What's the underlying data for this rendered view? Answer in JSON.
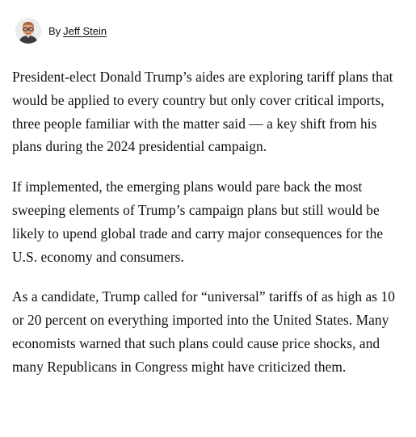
{
  "byline": {
    "prefix": "By",
    "author": "Jeff Stein"
  },
  "article": {
    "paragraphs": [
      "President-elect Donald Trump’s aides are exploring tariff plans that would be applied to every country but only cover critical imports, three people familiar with the matter said — a key shift from his plans during the 2024 presidential campaign.",
      "If implemented, the emerging plans would pare back the most sweeping elements of Trump’s campaign plans but still would be likely to upend global trade and carry major consequences for the U.S. economy and consumers.",
      "As a candidate, Trump called for “universal” tariffs of as high as 10 or 20 percent on everything imported into the United States. Many economists warned that such plans could cause price shocks, and many Republicans in Congress might have criticized them."
    ]
  }
}
